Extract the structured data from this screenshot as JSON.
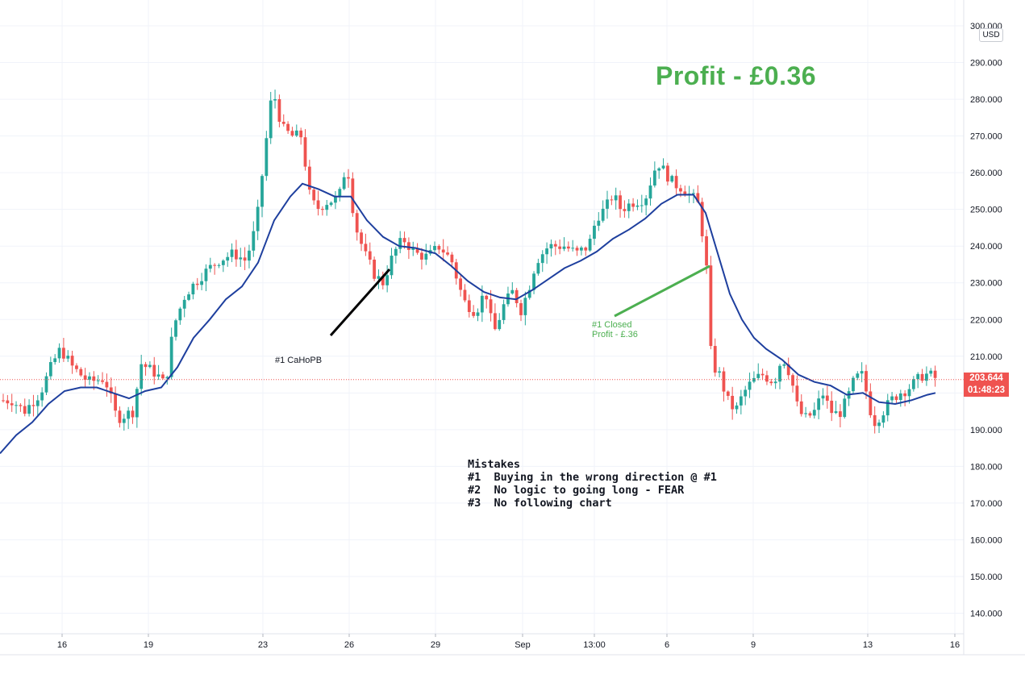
{
  "chart_data": {
    "type": "candlestick",
    "ylim": [
      135,
      302
    ],
    "y_ticks": [
      "140.000",
      "150.000",
      "160.000",
      "170.000",
      "180.000",
      "190.000",
      "200.000",
      "210.000",
      "220.000",
      "230.000",
      "240.000",
      "250.000",
      "260.000",
      "270.000",
      "280.000",
      "290.000",
      "300.000"
    ],
    "x_ticks": [
      "16",
      "19",
      "23",
      "26",
      "29",
      "Sep",
      "13:00",
      "6",
      "9",
      "13",
      "16"
    ],
    "moving_average": [
      [
        0,
        183.5
      ],
      [
        20,
        188.5
      ],
      [
        40,
        192
      ],
      [
        60,
        197
      ],
      [
        80,
        200.5
      ],
      [
        100,
        201.5
      ],
      [
        120,
        201.5
      ],
      [
        140,
        200
      ],
      [
        160,
        198.5
      ],
      [
        180,
        200.5
      ],
      [
        200,
        201.5
      ],
      [
        220,
        207
      ],
      [
        240,
        215
      ],
      [
        260,
        220
      ],
      [
        280,
        225.5
      ],
      [
        300,
        229
      ],
      [
        320,
        235.5
      ],
      [
        340,
        247
      ],
      [
        360,
        253.5
      ],
      [
        375,
        257
      ],
      [
        395,
        255.5
      ],
      [
        415,
        253.5
      ],
      [
        435,
        253.5
      ],
      [
        455,
        247
      ],
      [
        475,
        242.5
      ],
      [
        495,
        240
      ],
      [
        515,
        239.5
      ],
      [
        540,
        238
      ],
      [
        560,
        234.5
      ],
      [
        580,
        230.5
      ],
      [
        600,
        227.5
      ],
      [
        620,
        226
      ],
      [
        640,
        225.5
      ],
      [
        660,
        228
      ],
      [
        680,
        231
      ],
      [
        700,
        234
      ],
      [
        720,
        236
      ],
      [
        740,
        238.5
      ],
      [
        760,
        242
      ],
      [
        780,
        244.5
      ],
      [
        800,
        247.5
      ],
      [
        820,
        251.5
      ],
      [
        840,
        254
      ],
      [
        860,
        254
      ],
      [
        875,
        249
      ],
      [
        890,
        238
      ],
      [
        905,
        227
      ],
      [
        920,
        220
      ],
      [
        935,
        215
      ],
      [
        950,
        212
      ],
      [
        970,
        209
      ],
      [
        990,
        205
      ],
      [
        1010,
        203
      ],
      [
        1030,
        202
      ],
      [
        1050,
        199.5
      ],
      [
        1070,
        200
      ],
      [
        1090,
        197.5
      ],
      [
        1110,
        197
      ],
      [
        1130,
        198
      ],
      [
        1150,
        199.5
      ],
      [
        1160,
        200
      ]
    ],
    "last_price": "203.644",
    "countdown": "01:48:23",
    "currency": "USD",
    "colors": {
      "up": "#26a69a",
      "down": "#ef5350",
      "ma": "#1e3f9e",
      "profit_green": "#4caf50"
    }
  },
  "annotations": {
    "profit_title": "Profit - £0.36",
    "entry_label": "#1 CaHoPB",
    "closed_label": "#1 Closed\nProfit - £.36",
    "mistakes_text": "Mistakes\n#1  Buying in the wrong direction @ #1\n#2  No logic to going long - FEAR\n#3  No following chart"
  }
}
